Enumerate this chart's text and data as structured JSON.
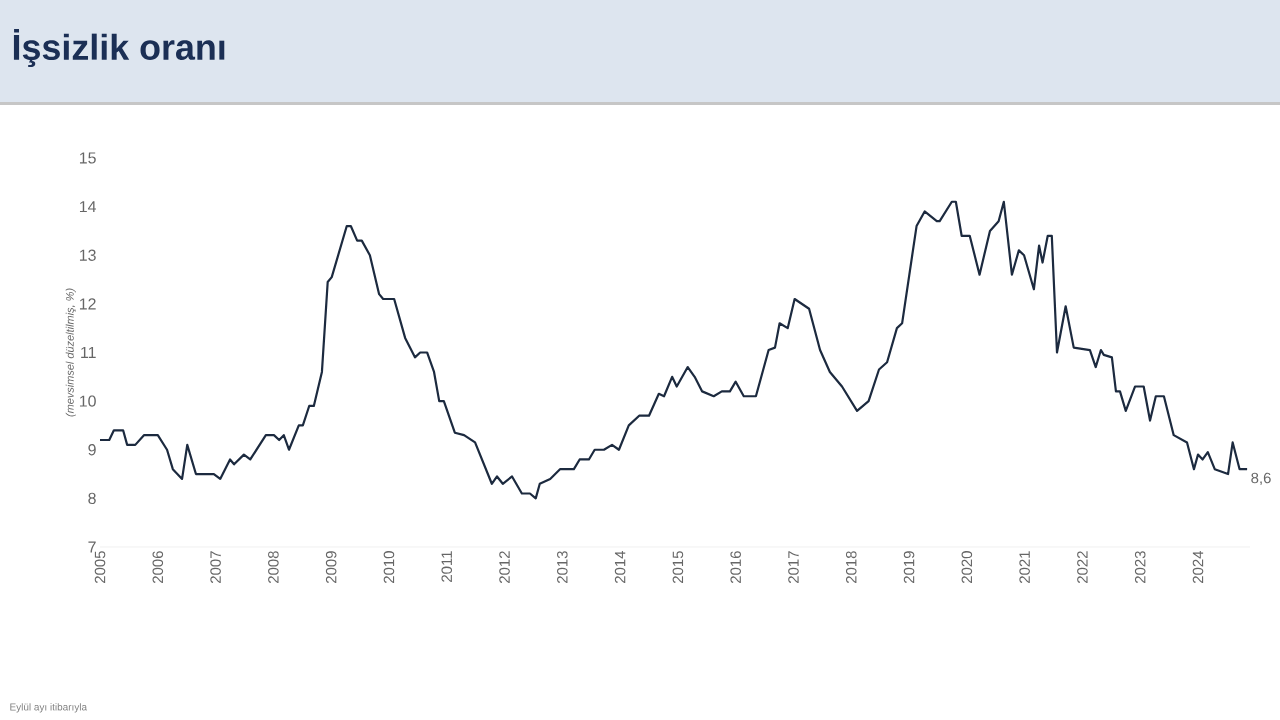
{
  "chart_data": {
    "type": "line",
    "title": "İşsizlik oranı",
    "ylabel": "(mevsimsel düzeltilmiş, %)",
    "x": [
      2005.0,
      2005.16,
      2005.24,
      2005.4,
      2005.47,
      2005.61,
      2005.76,
      2006.0,
      2006.16,
      2006.26,
      2006.42,
      2006.51,
      2006.66,
      2006.97,
      2007.08,
      2007.25,
      2007.32,
      2007.49,
      2007.6,
      2007.87,
      2008.01,
      2008.1,
      2008.18,
      2008.27,
      2008.44,
      2008.51,
      2008.62,
      2008.7,
      2008.84,
      2008.94,
      2009.01,
      2009.27,
      2009.34,
      2009.45,
      2009.53,
      2009.67,
      2009.83,
      2009.9,
      2010.09,
      2010.28,
      2010.45,
      2010.54,
      2010.66,
      2010.78,
      2010.87,
      2010.95,
      2011.14,
      2011.3,
      2011.49,
      2011.78,
      2011.87,
      2011.97,
      2012.13,
      2012.3,
      2012.44,
      2012.54,
      2012.61,
      2012.79,
      2012.96,
      2013.2,
      2013.3,
      2013.46,
      2013.56,
      2013.72,
      2013.86,
      2013.98,
      2014.15,
      2014.33,
      2014.5,
      2014.67,
      2014.76,
      2014.9,
      2014.98,
      2015.17,
      2015.29,
      2015.42,
      2015.62,
      2015.76,
      2015.9,
      2016.0,
      2016.14,
      2016.35,
      2016.57,
      2016.68,
      2016.76,
      2016.9,
      2017.02,
      2017.27,
      2017.46,
      2017.63,
      2017.84,
      2018.1,
      2018.3,
      2018.48,
      2018.62,
      2018.79,
      2018.88,
      2019.13,
      2019.27,
      2019.48,
      2019.53,
      2019.74,
      2019.81,
      2019.91,
      2020.05,
      2020.22,
      2020.4,
      2020.55,
      2020.64,
      2020.78,
      2020.9,
      2020.99,
      2021.16,
      2021.25,
      2021.31,
      2021.4,
      2021.47,
      2021.56,
      2021.71,
      2021.85,
      2022.13,
      2022.23,
      2022.32,
      2022.37,
      2022.51,
      2022.58,
      2022.65,
      2022.75,
      2022.91,
      2023.01,
      2023.06,
      2023.17,
      2023.27,
      2023.41,
      2023.58,
      2023.81,
      2023.93,
      2024.0,
      2024.08,
      2024.17,
      2024.29,
      2024.52,
      2024.6,
      2024.72,
      2024.85
    ],
    "values": [
      9.2,
      9.2,
      9.4,
      9.4,
      9.1,
      9.1,
      9.3,
      9.3,
      9.0,
      8.6,
      8.4,
      9.1,
      8.5,
      8.5,
      8.4,
      8.8,
      8.7,
      8.9,
      8.8,
      9.3,
      9.3,
      9.2,
      9.3,
      9.0,
      9.5,
      9.5,
      9.9,
      9.9,
      10.6,
      12.45,
      12.55,
      13.6,
      13.6,
      13.3,
      13.3,
      13.0,
      12.2,
      12.1,
      12.1,
      11.3,
      10.9,
      11.0,
      11.0,
      10.6,
      10.0,
      10.0,
      9.35,
      9.3,
      9.15,
      8.3,
      8.45,
      8.3,
      8.45,
      8.1,
      8.1,
      8.0,
      8.3,
      8.4,
      8.6,
      8.6,
      8.8,
      8.8,
      9.0,
      9.0,
      9.1,
      9.0,
      9.5,
      9.7,
      9.7,
      10.15,
      10.1,
      10.5,
      10.3,
      10.7,
      10.5,
      10.2,
      10.1,
      10.2,
      10.2,
      10.4,
      10.1,
      10.1,
      11.05,
      11.1,
      11.6,
      11.5,
      12.1,
      11.9,
      11.05,
      10.6,
      10.3,
      9.8,
      10.0,
      10.65,
      10.8,
      11.5,
      11.6,
      13.6,
      13.9,
      13.7,
      13.7,
      14.1,
      14.1,
      13.4,
      13.4,
      12.6,
      13.5,
      13.7,
      14.1,
      12.6,
      13.1,
      13.0,
      12.3,
      13.2,
      12.85,
      13.4,
      13.4,
      11.0,
      11.95,
      11.1,
      11.05,
      10.7,
      11.05,
      10.95,
      10.9,
      10.2,
      10.2,
      9.8,
      10.3,
      10.3,
      10.3,
      9.6,
      10.1,
      10.1,
      9.3,
      9.15,
      8.6,
      8.9,
      8.8,
      8.95,
      8.6,
      8.5,
      9.15,
      8.6,
      8.6
    ],
    "color": "#1c2a3f",
    "xlim": [
      2005,
      2024.9
    ],
    "xticks": [
      2005,
      2006,
      2007,
      2008,
      2009,
      2010,
      2011,
      2012,
      2013,
      2014,
      2015,
      2016,
      2017,
      2018,
      2019,
      2020,
      2021,
      2022,
      2023,
      2024
    ],
    "ylim": [
      7,
      15
    ],
    "yticks": [
      7,
      8,
      9,
      10,
      11,
      12,
      13,
      14,
      15
    ],
    "annotations": [
      {
        "text": "8,6",
        "x": 2024.85,
        "y": 8.6
      },
      "Eylül ayı itibarıyla"
    ]
  }
}
